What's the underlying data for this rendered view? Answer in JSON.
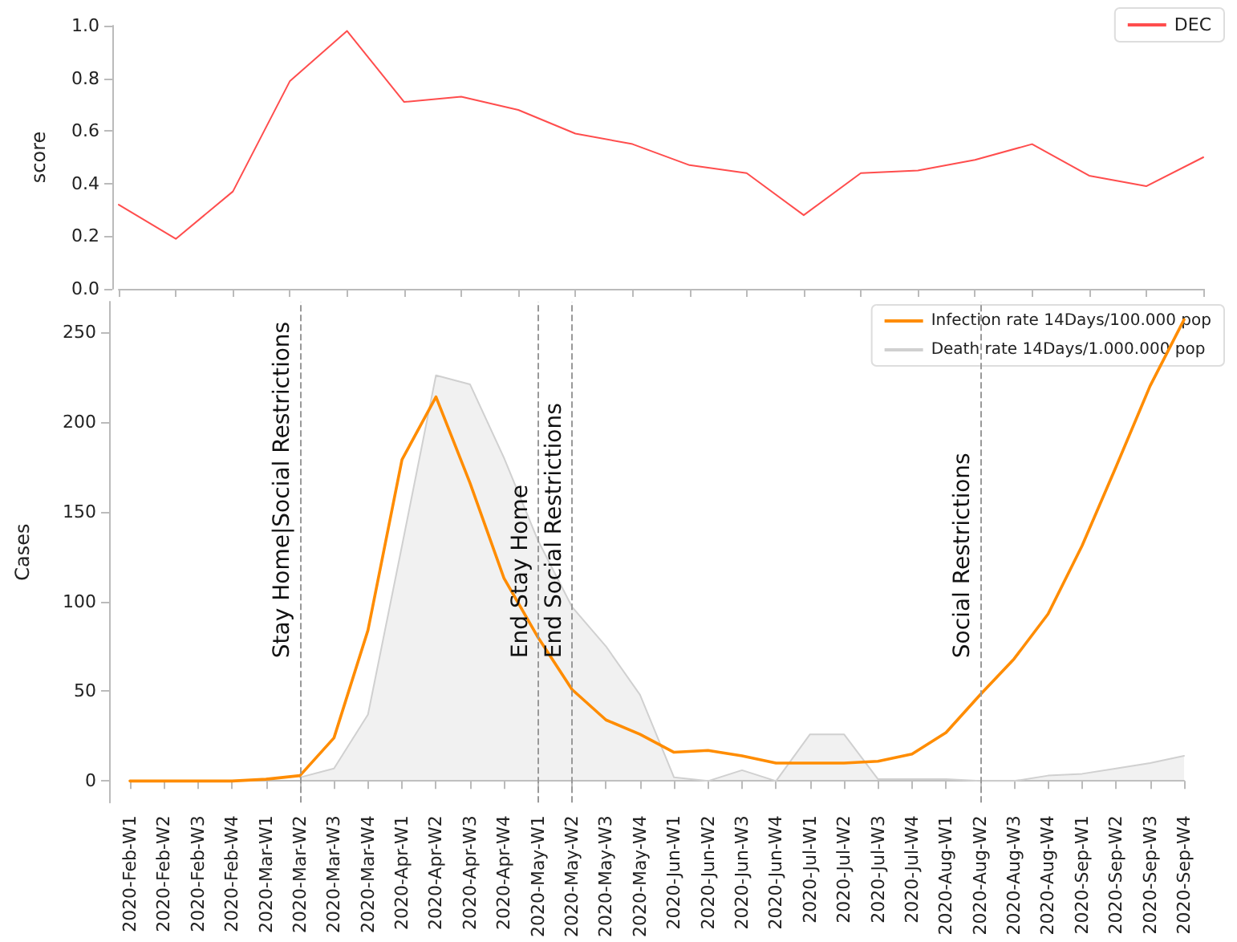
{
  "chart_data": [
    {
      "type": "line",
      "ylabel": "score",
      "categories": [
        null,
        null,
        null,
        null,
        null,
        null,
        null,
        null,
        null,
        null,
        null,
        null,
        null,
        null,
        null,
        null,
        null,
        null,
        null,
        null
      ],
      "series": [
        {
          "name": "DEC",
          "color": "#ff4d4d",
          "values": [
            0.32,
            0.19,
            0.37,
            0.79,
            0.98,
            0.71,
            0.73,
            0.68,
            0.59,
            0.55,
            0.47,
            0.44,
            0.28,
            0.44,
            0.45,
            0.49,
            0.55,
            0.43,
            0.39,
            0.5
          ]
        }
      ],
      "ylim": [
        0,
        1.0
      ],
      "yticks": [
        {
          "value": 0,
          "label": "0.0"
        },
        {
          "value": 0.2,
          "label": "0.2"
        },
        {
          "value": 0.4,
          "label": "0.4"
        },
        {
          "value": 0.6,
          "label": "0.6"
        },
        {
          "value": 0.8,
          "label": "0.8"
        },
        {
          "value": 1,
          "label": "1.0"
        }
      ],
      "tick_labels": "y",
      "legend": "top right",
      "grid": false,
      "marker": "none"
    },
    {
      "type": "line",
      "ylabel": "Cases",
      "categories": [
        "2020-Feb-W1",
        "2020-Feb-W2",
        "2020-Feb-W3",
        "2020-Feb-W4",
        "2020-Mar-W1",
        "2020-Mar-W2",
        "2020-Mar-W3",
        "2020-Mar-W4",
        "2020-Apr-W1",
        "2020-Apr-W2",
        "2020-Apr-W3",
        "2020-Apr-W4",
        "2020-May-W1",
        "2020-May-W2",
        "2020-May-W3",
        "2020-May-W4",
        "2020-Jun-W1",
        "2020-Jun-W2",
        "2020-Jun-W3",
        "2020-Jun-W4",
        "2020-Jul-W1",
        "2020-Jul-W2",
        "2020-Jul-W3",
        "2020-Jul-W4",
        "2020-Aug-W1",
        "2020-Aug-W2",
        "2020-Aug-W3",
        "2020-Aug-W4",
        "2020-Sep-W1",
        "2020-Sep-W2",
        "2020-Sep-W3",
        "2020-Sep-W4"
      ],
      "series": [
        {
          "name": "Infection rate 14Days/100.000 pop",
          "color": "#ff8c00",
          "values": [
            0,
            0,
            0,
            0,
            1,
            3,
            24,
            84,
            179,
            214,
            166,
            113,
            80,
            51,
            34,
            26,
            16,
            17,
            14,
            10,
            10,
            10,
            11,
            15,
            27,
            48,
            68,
            93,
            131,
            175,
            220,
            257
          ]
        },
        {
          "name": "Death rate 14Days/1.000.000 pop",
          "type": "area",
          "color": "#d0d0d0",
          "values": [
            null,
            null,
            null,
            null,
            null,
            2,
            7,
            37,
            131,
            226,
            221,
            180,
            134,
            97,
            75,
            48,
            2,
            0,
            6,
            0,
            26,
            26,
            1,
            1,
            1,
            0,
            0,
            3,
            4,
            7,
            10,
            14
          ]
        }
      ],
      "ylim": [
        -12,
        267
      ],
      "yticks": [
        0,
        50,
        100,
        150,
        200,
        250
      ],
      "ref_lines": [
        {
          "axis": "x",
          "value": "2020-Mar-W2",
          "label": "Stay Home|Social Restrictions",
          "color": "#999999",
          "line_style": "dashed"
        },
        {
          "axis": "x",
          "value": "2020-May-W1",
          "label": "End Stay Home",
          "color": "#999999",
          "line_style": "dashed"
        },
        {
          "axis": "x",
          "value": "2020-May-W2",
          "label": "End Social Restrictions",
          "color": "#999999",
          "line_style": "dashed"
        },
        {
          "axis": "x",
          "value": "2020-Aug-W2",
          "label": "Social Restrictions",
          "color": "#999999",
          "line_style": "dashed"
        }
      ],
      "legend": "top right",
      "grid": false,
      "marker": "none"
    }
  ]
}
